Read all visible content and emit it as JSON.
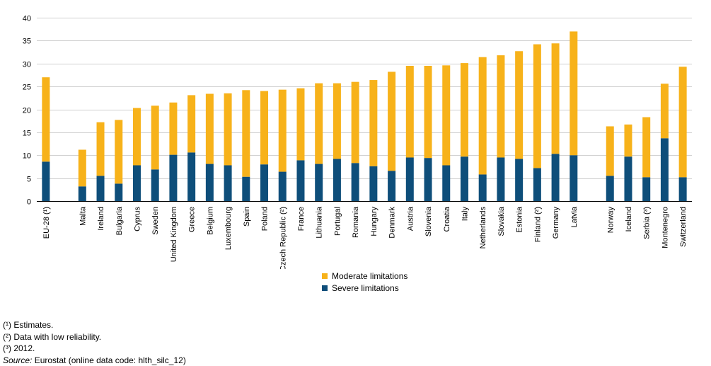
{
  "chart_data": {
    "type": "bar",
    "stacked": true,
    "title": "",
    "xlabel": "",
    "ylabel": "",
    "ylim": [
      0,
      40
    ],
    "yticks": [
      0,
      5,
      10,
      15,
      20,
      25,
      30,
      35,
      40
    ],
    "grid": true,
    "categories": [
      "EU-28 (¹)",
      "",
      "Malta",
      "Ireland",
      "Bulgaria",
      "Cyprus",
      "Sweden",
      "United Kingdom",
      "Greece",
      "Belgium",
      "Luxembourg",
      "Spain",
      "Poland",
      "Czech Republic (²)",
      "France",
      "Lithuania",
      "Portugal",
      "Romania",
      "Hungary",
      "Denmark",
      "Austria",
      "Slovenia",
      "Croatia",
      "Italy",
      "Netherlands",
      "Slovakia",
      "Estonia",
      "Finland (²)",
      "Germany",
      "Latvia",
      "",
      "Norway",
      "Iceland",
      "Serbia (³)",
      "Montenegro",
      "Switzerland"
    ],
    "series": [
      {
        "name": "Severe limitations",
        "color": "#0e4e7a",
        "values": [
          8.6,
          null,
          3.2,
          5.5,
          3.8,
          7.8,
          6.9,
          10.1,
          10.6,
          8.1,
          7.8,
          5.3,
          8.0,
          6.4,
          8.9,
          8.1,
          9.2,
          8.3,
          7.6,
          6.6,
          9.5,
          9.4,
          7.8,
          9.7,
          5.8,
          9.5,
          9.2,
          7.2,
          10.3,
          10.0,
          null,
          5.5,
          9.7,
          5.2,
          13.7,
          5.2
        ]
      },
      {
        "name": "Moderate limitations",
        "color": "#f7b21a",
        "values": [
          18.4,
          null,
          8.0,
          11.7,
          13.9,
          12.5,
          13.9,
          11.4,
          12.5,
          15.3,
          15.7,
          18.9,
          16.0,
          17.9,
          15.7,
          17.6,
          16.5,
          17.7,
          18.8,
          21.6,
          20.0,
          20.1,
          21.8,
          20.4,
          25.6,
          22.3,
          23.5,
          27.0,
          24.1,
          27.0,
          null,
          10.8,
          7.0,
          13.1,
          11.9,
          24.1
        ]
      }
    ],
    "legend_position": "bottom-center"
  },
  "legend": {
    "items": [
      {
        "label": "Moderate limitations",
        "color": "#f7b21a"
      },
      {
        "label": "Severe limitations",
        "color": "#0e4e7a"
      }
    ]
  },
  "notes": {
    "note1": "(¹) Estimates.",
    "note2": "(²) Data with low reliability.",
    "note3": "(³) 2012.",
    "source_label": "Source:",
    "source_text": " Eurostat (online data code: hlth_silc_12)"
  }
}
